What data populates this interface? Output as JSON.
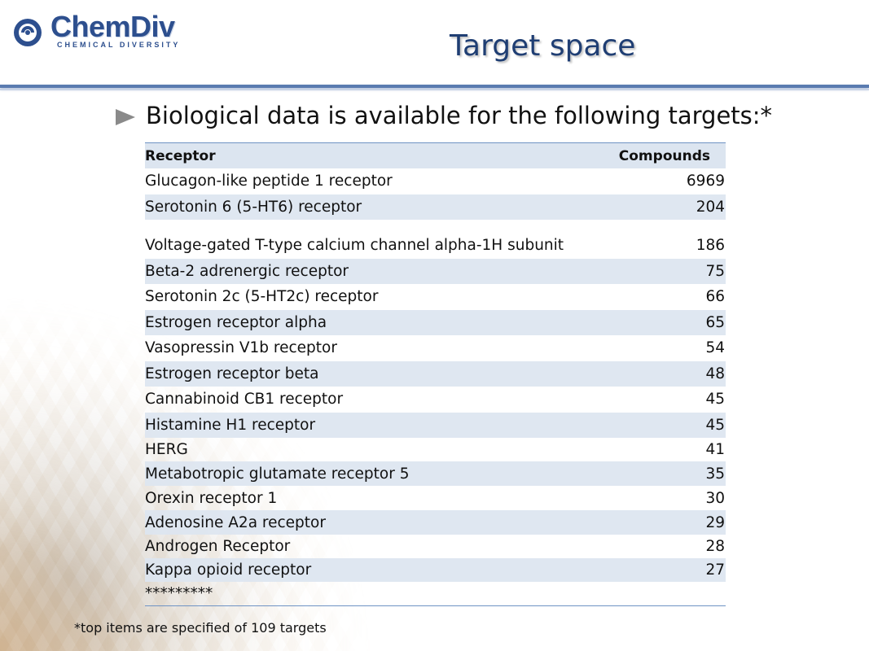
{
  "header": {
    "logo_text": "ChemDiv",
    "logo_subtext": "CHEMICAL DIVERSITY",
    "title": "Target space"
  },
  "bullet": {
    "text": "Biological data is available for the following targets:*"
  },
  "table": {
    "headers": {
      "receptor": "Receptor",
      "compounds": "Compounds"
    },
    "rows": [
      {
        "receptor": "Glucagon-like peptide 1 receptor",
        "compounds": "6969"
      },
      {
        "receptor": "Serotonin 6 (5-HT6) receptor",
        "compounds": "204"
      },
      {
        "receptor": "Voltage-gated T-type calcium channel alpha-1H subunit",
        "compounds": "186"
      },
      {
        "receptor": "Beta-2 adrenergic receptor",
        "compounds": "75"
      },
      {
        "receptor": "Serotonin 2c (5-HT2c) receptor",
        "compounds": "66"
      },
      {
        "receptor": "Estrogen receptor alpha",
        "compounds": "65"
      },
      {
        "receptor": "Vasopressin V1b receptor",
        "compounds": "54"
      },
      {
        "receptor": "Estrogen receptor beta",
        "compounds": "48"
      },
      {
        "receptor": "Cannabinoid CB1 receptor",
        "compounds": "45"
      },
      {
        "receptor": "Histamine H1 receptor",
        "compounds": "45"
      },
      {
        "receptor": "HERG",
        "compounds": "41"
      },
      {
        "receptor": "Metabotropic glutamate receptor 5",
        "compounds": "35"
      },
      {
        "receptor": "Orexin receptor 1",
        "compounds": "30"
      },
      {
        "receptor": "Adenosine A2a receptor",
        "compounds": "29"
      },
      {
        "receptor": "Androgen Receptor",
        "compounds": "28"
      },
      {
        "receptor": "Kappa opioid receptor",
        "compounds": "27"
      }
    ],
    "continuation": "*********"
  },
  "footnote": "*top items are specified of 109 targets",
  "colors": {
    "accent": "#1f3e73",
    "rule": "#5a7bb0",
    "row_shade": "#dce5f0"
  }
}
